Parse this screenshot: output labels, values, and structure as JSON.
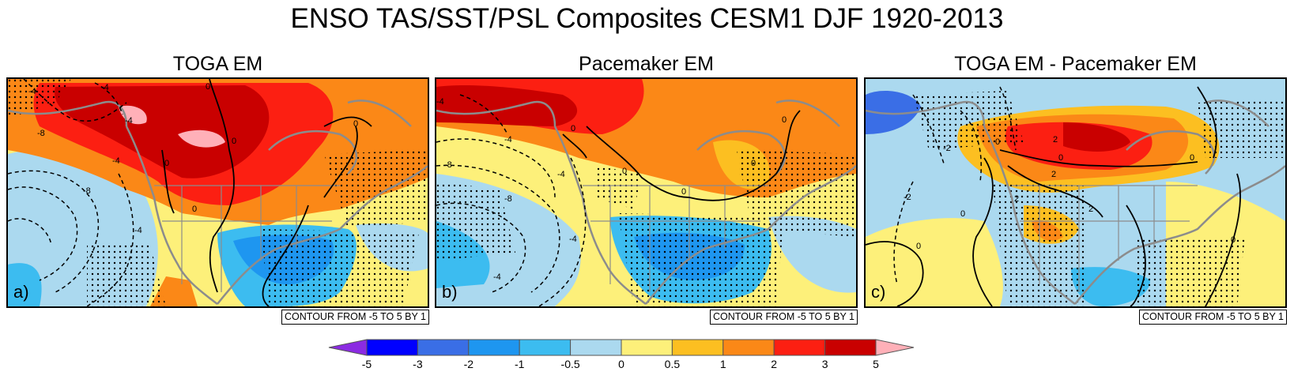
{
  "title": "ENSO TAS/SST/PSL Composites CESM1 DJF 1920-2013",
  "panels": [
    {
      "title": "TOGA EM",
      "label": "a)",
      "note": "CONTOUR FROM -5 TO 5 BY 1",
      "contour_labels": [
        "-4",
        "-4",
        "-4",
        "-8",
        "-8",
        "-4",
        "-4",
        "0",
        "0",
        "0",
        "0",
        "0"
      ]
    },
    {
      "title": "Pacemaker EM",
      "label": "b)",
      "note": "CONTOUR FROM -5 TO 5 BY 1",
      "contour_labels": [
        "-4",
        "-4",
        "-8",
        "-4",
        "-8",
        "-4",
        "-4",
        "0",
        "0",
        "0",
        "0",
        "0"
      ]
    },
    {
      "title": "TOGA EM - Pacemaker EM",
      "label": "c)",
      "note": "CONTOUR FROM -5 TO 5 BY 1",
      "contour_labels": [
        "-2",
        "2",
        "-2",
        "0",
        "2",
        "2",
        "2",
        "0",
        "0",
        "0",
        "0",
        "0"
      ]
    }
  ],
  "colorbar": {
    "labels": [
      "-5",
      "-3",
      "-2",
      "-1",
      "-0.5",
      "0",
      "0.5",
      "1",
      "2",
      "3",
      "5"
    ],
    "colors": [
      "#8b2be2",
      "#0000ff",
      "#3a6ee6",
      "#1e96f0",
      "#3cbcf0",
      "#abd9ef",
      "#fdf07a",
      "#fcbf21",
      "#fb8817",
      "#fc1f12",
      "#c90000",
      "#ffb0b8"
    ]
  },
  "colors": {
    "coastline": "#8c8c8c",
    "contour": "#000000"
  }
}
